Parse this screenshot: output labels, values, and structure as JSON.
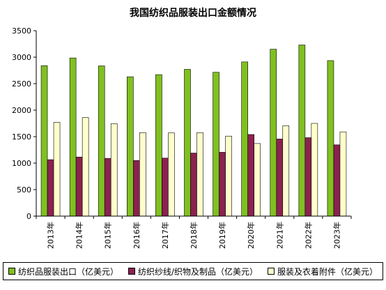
{
  "chart_data": {
    "type": "bar",
    "title": "我国纺织品服装出口金额情况",
    "xlabel": "",
    "ylabel": "",
    "ylim": [
      0,
      3500
    ],
    "yticks": [
      0,
      500,
      1000,
      1500,
      2000,
      2500,
      3000,
      3500
    ],
    "categories": [
      "2013年",
      "2014年",
      "2015年",
      "2016年",
      "2017年",
      "2018年",
      "2019年",
      "2020年",
      "2021年",
      "2022年",
      "2023年"
    ],
    "series": [
      {
        "name": "纺织品服装出口（亿美元）",
        "color": "#80c020",
        "values": [
          2840,
          2985,
          2835,
          2630,
          2670,
          2770,
          2715,
          2910,
          3150,
          3230,
          2935
        ]
      },
      {
        "name": "纺织纱线/织物及制品（亿美元）",
        "color": "#8b2250",
        "values": [
          1065,
          1115,
          1090,
          1050,
          1095,
          1190,
          1205,
          1540,
          1455,
          1480,
          1345
        ]
      },
      {
        "name": "服装及衣着附件（亿美元）",
        "color": "#ffffcc",
        "values": [
          1770,
          1860,
          1745,
          1575,
          1570,
          1575,
          1510,
          1370,
          1705,
          1750,
          1590
        ]
      }
    ],
    "grid": false,
    "legend_position": "bottom"
  }
}
